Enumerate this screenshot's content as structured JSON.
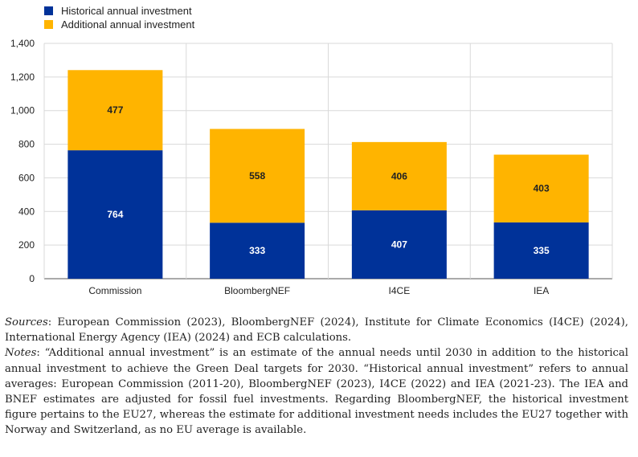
{
  "chart_data": {
    "type": "bar",
    "stacked": true,
    "categories": [
      "Commission",
      "BloombergNEF",
      "I4CE",
      "IEA"
    ],
    "series": [
      {
        "name": "Historical annual investment",
        "color": "#003299",
        "values": [
          764,
          333,
          407,
          335
        ]
      },
      {
        "name": "Additional annual investment",
        "color": "#FFB400",
        "values": [
          477,
          558,
          406,
          403
        ]
      }
    ],
    "ylim": [
      0,
      1400
    ],
    "yticks": [
      0,
      200,
      400,
      600,
      800,
      1000,
      1200,
      1400
    ],
    "ytick_labels": [
      "0",
      "200",
      "400",
      "600",
      "800",
      "1,000",
      "1,200",
      "1,400"
    ],
    "grid": true,
    "legend_position": "top-left"
  },
  "notes": {
    "sources_label": "Sources",
    "sources_text": ": European Commission (2023), BloombergNEF (2024), Institute for Climate Economics (I4CE) (2024), International Energy Agency (IEA) (2024) and ECB calculations.",
    "notes_label": "Notes",
    "notes_text": ": “Additional annual investment” is an estimate of the annual needs until 2030 in addition to the historical annual investment to achieve the Green Deal targets for 2030. “Historical annual investment” refers to annual averages: European Commission (2011-20), BloombergNEF (2023), I4CE (2022) and IEA (2021-23). The IEA and BNEF estimates are adjusted for fossil fuel investments. Regarding BloombergNEF, the historical investment figure pertains to the EU27, whereas the estimate for additional investment needs includes the EU27 together with Norway and Switzerland, as no EU average is available."
  }
}
